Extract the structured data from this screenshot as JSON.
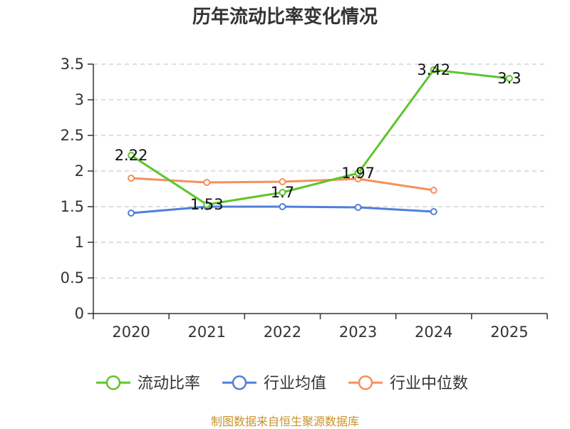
{
  "chart_data": {
    "type": "line",
    "title": "历年流动比率变化情况",
    "categories": [
      "2020",
      "2021",
      "2022",
      "2023",
      "2024",
      "2025"
    ],
    "ylim": [
      0,
      3.5
    ],
    "yticks": [
      "0",
      "0.5",
      "1",
      "1.5",
      "2",
      "2.5",
      "3",
      "3.5"
    ],
    "grid": true,
    "legend_position": "bottom",
    "series": [
      {
        "name": "流动比率",
        "color": "#5ec52c",
        "values": [
          2.22,
          1.53,
          1.7,
          1.97,
          3.42,
          3.3
        ],
        "labels": [
          "2.22",
          "1.53",
          "1.7",
          "1.97",
          "3.42",
          "3.3"
        ]
      },
      {
        "name": "行业均值",
        "color": "#4f7fdc",
        "values": [
          1.41,
          1.5,
          1.5,
          1.49,
          1.43,
          null
        ]
      },
      {
        "name": "行业中位数",
        "color": "#f78f5c",
        "values": [
          1.9,
          1.84,
          1.85,
          1.89,
          1.73,
          null
        ]
      }
    ]
  },
  "footer": {
    "source": "制图数据来自恒生聚源数据库"
  }
}
